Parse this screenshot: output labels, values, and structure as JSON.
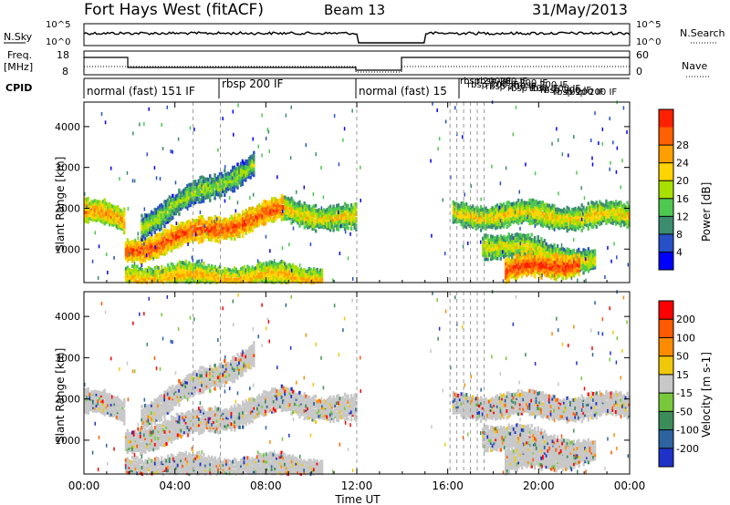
{
  "header": {
    "station": "Fort Hays West (fitACF)",
    "beam": "Beam 13",
    "date": "31/May/2013"
  },
  "status_panels": {
    "nsky_label": "N.Sky",
    "nsky_ticks": [
      "10^5",
      "10^0"
    ],
    "nsearch_label": "N.Search",
    "nsearch_ticks": [
      "10^5",
      "10^0"
    ],
    "freq_label": "Freq.",
    "freq_unit": "[MHz]",
    "freq_ticks": [
      "18",
      "8"
    ],
    "nave_label": "Nave",
    "nave_ticks": [
      "60",
      "0"
    ],
    "cpid_label": "CPID",
    "cpid_segments": [
      "normal (fast) 151 IF",
      "rbsp 200 IF",
      "normal (fast) 15"
    ],
    "cpid_overlap_text": "rbsp 200 IF"
  },
  "chart_data": [
    {
      "type": "heatmap",
      "name": "power",
      "ylabel": "Slant Range [km]",
      "xlabel": "",
      "x_tick_labels": [
        "00:00",
        "04:00",
        "08:00",
        "12:00",
        "16:00",
        "20:00",
        "00:00"
      ],
      "x_range_hours": [
        0,
        24
      ],
      "ylim": [
        180,
        4600
      ],
      "y_ticks": [
        1000,
        2000,
        3000,
        4000
      ],
      "colorbar": {
        "label": "Power [dB]",
        "tick_labels": [
          "4",
          "8",
          "12",
          "16",
          "20",
          "24",
          "28"
        ],
        "colors": [
          "#0000ff",
          "#2850c8",
          "#3c8c6e",
          "#4fc850",
          "#a8e000",
          "#ffd400",
          "#ffa000",
          "#ff6000",
          "#ff2000"
        ]
      },
      "bands": [
        {
          "t0": 0.0,
          "t1": 1.8,
          "r0": 1950,
          "r1": 1650,
          "intensity": 0.65
        },
        {
          "t0": 1.8,
          "t1": 8.8,
          "r0": 950,
          "r1": 1950,
          "intensity": 0.85
        },
        {
          "t0": 8.8,
          "t1": 12.0,
          "r0": 1950,
          "r1": 1700,
          "intensity": 0.45
        },
        {
          "t0": 2.5,
          "t1": 7.5,
          "r0": 1600,
          "r1": 3100,
          "intensity": 0.25
        },
        {
          "t0": 16.2,
          "t1": 24.0,
          "r0": 1850,
          "r1": 1800,
          "intensity": 0.45
        },
        {
          "t0": 17.5,
          "t1": 22.5,
          "r0": 1150,
          "r1": 700,
          "intensity": 0.4
        },
        {
          "t0": 18.5,
          "t1": 21.8,
          "r0": 450,
          "r1": 700,
          "intensity": 0.9
        },
        {
          "t0": 1.8,
          "t1": 10.5,
          "r0": 320,
          "r1": 320,
          "intensity": 0.55
        }
      ]
    },
    {
      "type": "heatmap",
      "name": "velocity",
      "ylabel": "Slant Range [km]",
      "xlabel": "Time UT",
      "x_tick_labels": [
        "00:00",
        "04:00",
        "08:00",
        "12:00",
        "16:00",
        "20:00",
        "00:00"
      ],
      "x_range_hours": [
        0,
        24
      ],
      "ylim": [
        180,
        4600
      ],
      "y_ticks": [
        1000,
        2000,
        3000,
        4000
      ],
      "colorbar": {
        "label": "Velocity [m s-1]",
        "tick_labels": [
          "200",
          "100",
          "50",
          "15",
          "-15",
          "-50",
          "-100",
          "-200"
        ],
        "colors": [
          "#1e32c8",
          "#2d64a0",
          "#3c8c5a",
          "#78c83c",
          "#c8c8c8",
          "#f0c80a",
          "#ff8c00",
          "#ff5a00",
          "#ff0000"
        ]
      }
    }
  ]
}
